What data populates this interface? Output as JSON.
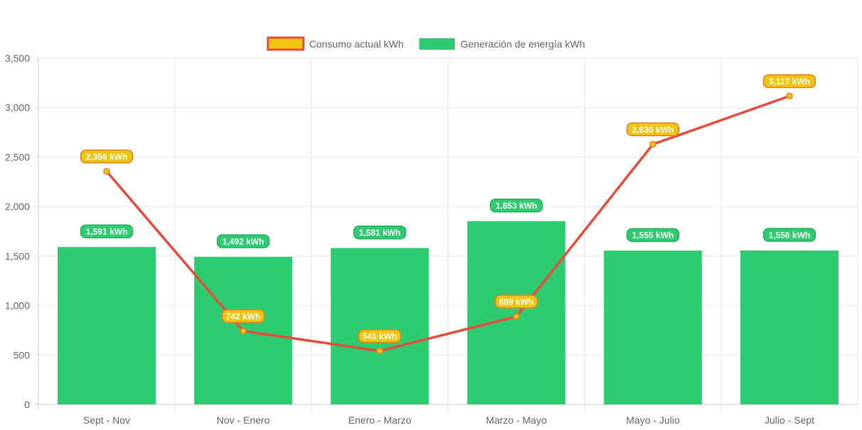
{
  "chart_data": {
    "type": "bar",
    "title": "",
    "xlabel": "",
    "ylabel": "",
    "ylim": [
      0,
      3500
    ],
    "yticks": [
      0,
      500,
      1000,
      1500,
      2000,
      2500,
      3000,
      3500
    ],
    "ytick_labels": [
      "0",
      "500",
      "1,000",
      "1,500",
      "2,000",
      "2,500",
      "3,000",
      "3,500"
    ],
    "grid": true,
    "legend_position": "top",
    "categories": [
      "Sept - Nov",
      "Nov - Enero",
      "Enero - Marzo",
      "Marzo - Mayo",
      "Mayo - Julio",
      "Julio - Sept"
    ],
    "series": [
      {
        "name": "Consumo actual kWh",
        "type": "line",
        "values": [
          2356,
          742,
          541,
          889,
          2630,
          3117
        ],
        "labels": [
          "2,356 kWh",
          "742 kWh",
          "541 kWh",
          "889 kWh",
          "2,630 kWh",
          "3,117 kWh"
        ],
        "color": "#e74c3c",
        "marker_color": "#f1c40f",
        "label_bg": "#f1c40f",
        "label_border": "#e67e22"
      },
      {
        "name": "Generación de energía kWh",
        "type": "bar",
        "values": [
          1591,
          1492,
          1581,
          1853,
          1555,
          1556
        ],
        "labels": [
          "1,591 kWh",
          "1,492 kWh",
          "1,581 kWh",
          "1,853 kWh",
          "1,555 kWh",
          "1,556 kWh"
        ],
        "color": "#2ecc71",
        "label_bg": "#2ecc71",
        "label_border": "#27ae60"
      }
    ]
  },
  "colors": {
    "grid": "#e5e5e5",
    "axis": "#cccccc",
    "tick_text": "#666666"
  }
}
